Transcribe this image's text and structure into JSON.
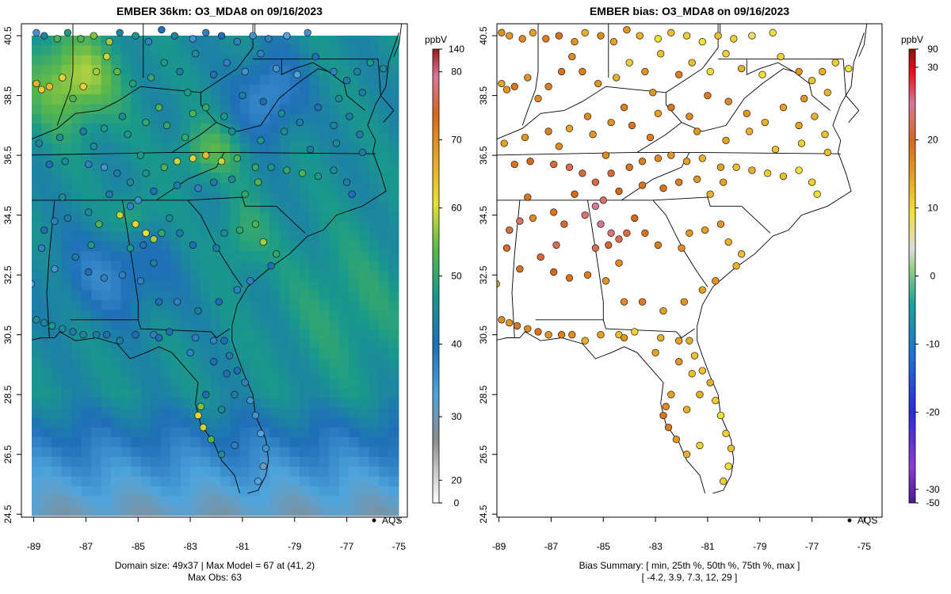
{
  "left_panel": {
    "title": "EMBER 36km: O3_MDA8 on 09/16/2023",
    "caption_line1": "Domain size: 49x37 | Max Model = 67 at (41, 2)",
    "caption_line2": "Max Obs: 63",
    "legend_label": "AQS",
    "colorbar_unit": "ppbV",
    "colorbar_ticks": [
      "0",
      "20",
      "30",
      "40",
      "50",
      "60",
      "70",
      "80",
      "140"
    ]
  },
  "right_panel": {
    "title": "EMBER bias: O3_MDA8 on 09/16/2023",
    "caption_line1": "Bias Summary: [ min, 25th %, 50th %, 75th %, max ]",
    "caption_line2": "[ -4.2,   3.9,   7.3,   12,   29 ]",
    "legend_label": "AQS",
    "colorbar_unit": "ppbV",
    "colorbar_ticks": [
      "-50",
      "-30",
      "-20",
      "-10",
      "0",
      "10",
      "20",
      "30",
      "90"
    ]
  },
  "axes": {
    "lon_ticks": [
      "-89",
      "-87",
      "-85",
      "-83",
      "-81",
      "-79",
      "-77",
      "-75"
    ],
    "lat_ticks": [
      "24.5",
      "26.5",
      "28.5",
      "30.5",
      "32.5",
      "34.5",
      "36.5",
      "38.5",
      "40.5"
    ]
  },
  "colors": {
    "concentration_ramp": [
      "#ffffff",
      "#c8c8c8",
      "#8c8c8c",
      "#4fa3d9",
      "#1f6fb8",
      "#1a9a8a",
      "#5bb84a",
      "#e8df3a",
      "#e7a52a",
      "#d6671e",
      "#d8769a",
      "#9c1a1a"
    ],
    "bias_ramp": [
      "#4b1a8f",
      "#8c3cd8",
      "#2c2ccf",
      "#1f6fd8",
      "#1aa39a",
      "#9ccf8a",
      "#dcdcdc",
      "#f0e03a",
      "#e6a024",
      "#d6681e",
      "#d8769a",
      "#e8101a",
      "#8c1010"
    ]
  },
  "domain": {
    "lon_min": -89.2,
    "lon_max": -74.8,
    "lat_min": 24.4,
    "lat_max": 40.9
  }
}
